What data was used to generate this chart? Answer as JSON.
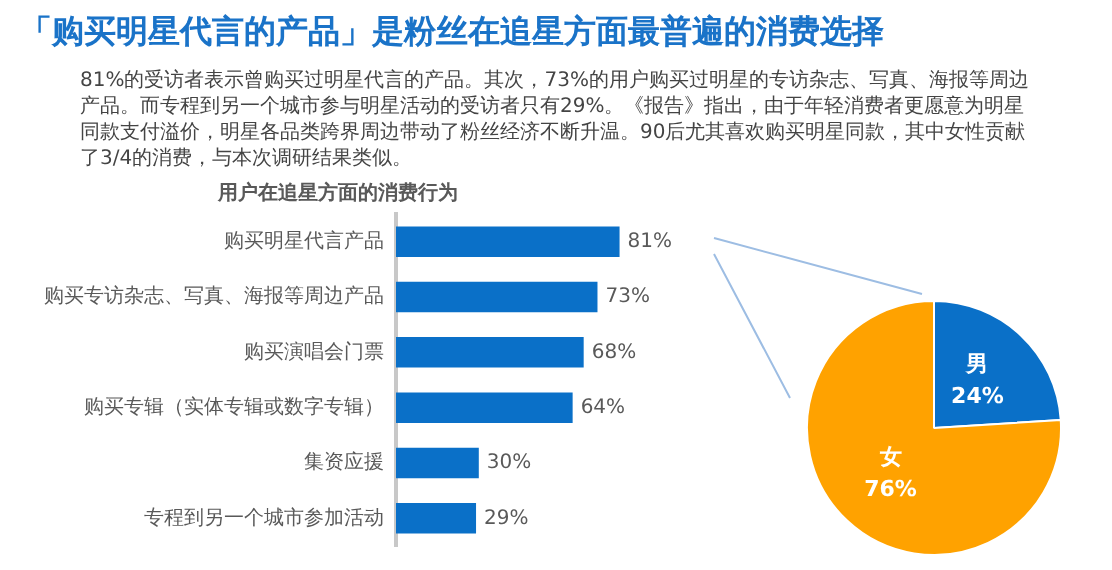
{
  "chart_data": [
    {
      "type": "bar",
      "orientation": "horizontal",
      "title": "用户在追星方面的消费行为",
      "annotations": [
        "「购买明星代言的产品」是粉丝在追星方面最普遍的消费选择",
        "81%的受访者表示曾购买过明星代言的产品。其次，73%的用户购买过明星的专访杂志、写真、海报等周边产品。而专程到另一个城市参与明星活动的受访者只有29%。《报告》指出，由于年轻消费者更愿意为明星同款支付溢价，明星各品类跨界周边带动了粉丝经济不断升温。90后尤其喜欢购买明星同款，其中女性贡献了3/4的消费，与本次调研结果类似。"
      ],
      "categories": [
        "购买明星代言产品",
        "购买专访杂志、写真、海报等周边产品",
        "购买演唱会门票",
        "购买专辑（实体专辑或数字专辑）",
        "集资应援",
        "专程到另一个城市参加活动"
      ],
      "values": [
        81,
        73,
        68,
        64,
        30,
        29
      ],
      "color": "#0a70c8",
      "value_labels": [
        "81%",
        "73%",
        "68%",
        "64%",
        "30%",
        "29%"
      ],
      "tick_labels": "y",
      "grid": false,
      "legend": false
    },
    {
      "type": "pie",
      "categories": [
        "男",
        "女"
      ],
      "values": [
        24,
        76
      ],
      "colors": [
        "#0a70c8",
        "#ffa200"
      ],
      "value_labels": [
        "24%",
        "76%"
      ],
      "legend": false
    }
  ]
}
